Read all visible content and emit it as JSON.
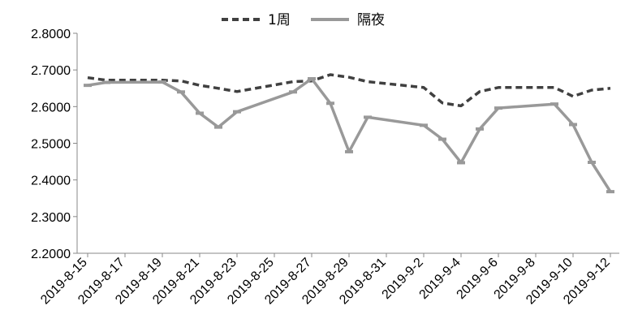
{
  "chart_data": {
    "type": "line",
    "title": "",
    "xlabel": "",
    "ylabel": "",
    "ylim": [
      2.2,
      2.8
    ],
    "y_ticks": [
      "2.2000",
      "2.3000",
      "2.4000",
      "2.5000",
      "2.6000",
      "2.7000",
      "2.8000"
    ],
    "x_ticks": [
      "2019-8-15",
      "2019-8-17",
      "2019-8-19",
      "2019-8-21",
      "2019-8-23",
      "2019-8-25",
      "2019-8-27",
      "2019-8-29",
      "2019-8-31",
      "2019-9-2",
      "2019-9-4",
      "2019-9-6",
      "2019-9-8",
      "2019-9-10",
      "2019-9-12"
    ],
    "legend_position": "top-center",
    "grid": false,
    "series": [
      {
        "name": "1周",
        "color": "#404040",
        "style": "dashed",
        "points": [
          [
            "2019-8-15",
            2.679
          ],
          [
            "2019-8-16",
            2.672
          ],
          [
            "2019-8-19",
            2.672
          ],
          [
            "2019-8-20",
            2.67
          ],
          [
            "2019-8-21",
            2.658
          ],
          [
            "2019-8-22",
            2.65
          ],
          [
            "2019-8-23",
            2.641
          ],
          [
            "2019-8-26",
            2.668
          ],
          [
            "2019-8-27",
            2.67
          ],
          [
            "2019-8-28",
            2.687
          ],
          [
            "2019-8-29",
            2.68
          ],
          [
            "2019-8-30",
            2.668
          ],
          [
            "2019-9-2",
            2.652
          ],
          [
            "2019-9-3",
            2.61
          ],
          [
            "2019-9-4",
            2.602
          ],
          [
            "2019-9-5",
            2.641
          ],
          [
            "2019-9-6",
            2.652
          ],
          [
            "2019-9-9",
            2.652
          ],
          [
            "2019-9-10",
            2.628
          ],
          [
            "2019-9-11",
            2.645
          ],
          [
            "2019-9-12",
            2.65
          ]
        ]
      },
      {
        "name": "隔夜",
        "color": "#999999",
        "style": "solid",
        "points": [
          [
            "2019-8-15",
            2.658
          ],
          [
            "2019-8-16",
            2.666
          ],
          [
            "2019-8-19",
            2.667
          ],
          [
            "2019-8-20",
            2.64
          ],
          [
            "2019-8-21",
            2.582
          ],
          [
            "2019-8-22",
            2.544
          ],
          [
            "2019-8-23",
            2.586
          ],
          [
            "2019-8-26",
            2.64
          ],
          [
            "2019-8-27",
            2.676
          ],
          [
            "2019-8-28",
            2.609
          ],
          [
            "2019-8-29",
            2.477
          ],
          [
            "2019-8-30",
            2.571
          ],
          [
            "2019-9-2",
            2.549
          ],
          [
            "2019-9-3",
            2.511
          ],
          [
            "2019-9-4",
            2.447
          ],
          [
            "2019-9-5",
            2.539
          ],
          [
            "2019-9-6",
            2.596
          ],
          [
            "2019-9-9",
            2.607
          ],
          [
            "2019-9-10",
            2.551
          ],
          [
            "2019-9-11",
            2.448
          ],
          [
            "2019-9-12",
            2.368
          ]
        ]
      }
    ]
  }
}
